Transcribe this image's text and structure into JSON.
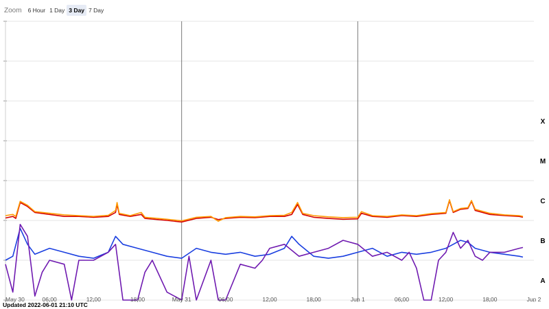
{
  "zoom": {
    "label": "Zoom",
    "buttons": [
      "6 Hour",
      "1 Day",
      "3 Day",
      "7 Day"
    ],
    "active": "3 Day"
  },
  "updated_text": "Updated 2022-06-01 21:10 UTC",
  "colors": {
    "flux_long": "#d40000",
    "flux_long_b": "#ff9900",
    "flux_short": "#1a3fe0",
    "flux_short_b": "#6f1ab0",
    "grid": "#e4e4e4",
    "day_line": "#777777"
  },
  "chart_data": {
    "type": "line",
    "title": "",
    "xlabel": "",
    "ylabel": "",
    "x_ticks": [
      "May 30",
      "06:00",
      "12:00",
      "18:00",
      "May 31",
      "06:00",
      "12:00",
      "18:00",
      "Jun 1",
      "06:00",
      "12:00",
      "18:00",
      "Jun 2"
    ],
    "x_range_hours": [
      0,
      72
    ],
    "y_scale": "log",
    "ylim_decades": [
      -9,
      -2
    ],
    "class_labels": [
      {
        "label": "X",
        "decade": -4
      },
      {
        "label": "M",
        "decade": -5
      },
      {
        "label": "C",
        "decade": -6
      },
      {
        "label": "B",
        "decade": -7
      },
      {
        "label": "A",
        "decade": -8
      }
    ],
    "day_boundaries_hours": [
      24,
      48
    ],
    "grid": true,
    "series": [
      {
        "color_key": "flux_long",
        "points": [
          [
            0,
            -6.94
          ],
          [
            1,
            -6.9
          ],
          [
            1.4,
            -6.95
          ],
          [
            2,
            -6.55
          ],
          [
            3,
            -6.65
          ],
          [
            4,
            -6.8
          ],
          [
            6,
            -6.85
          ],
          [
            8,
            -6.9
          ],
          [
            10,
            -6.9
          ],
          [
            12,
            -6.92
          ],
          [
            14,
            -6.9
          ],
          [
            15,
            -6.8
          ],
          [
            15.2,
            -6.6
          ],
          [
            15.5,
            -6.85
          ],
          [
            17,
            -6.9
          ],
          [
            18.5,
            -6.85
          ],
          [
            19,
            -6.95
          ],
          [
            22,
            -7.0
          ],
          [
            24,
            -7.04
          ],
          [
            26,
            -6.95
          ],
          [
            28,
            -6.92
          ],
          [
            29,
            -6.98
          ],
          [
            30,
            -6.95
          ],
          [
            32,
            -6.92
          ],
          [
            34,
            -6.93
          ],
          [
            36,
            -6.9
          ],
          [
            38,
            -6.9
          ],
          [
            39,
            -6.85
          ],
          [
            39.8,
            -6.6
          ],
          [
            40.5,
            -6.85
          ],
          [
            42,
            -6.92
          ],
          [
            44,
            -6.95
          ],
          [
            46,
            -6.97
          ],
          [
            48,
            -6.96
          ],
          [
            48.5,
            -6.82
          ],
          [
            50,
            -6.9
          ],
          [
            52,
            -6.92
          ],
          [
            54,
            -6.88
          ],
          [
            56,
            -6.9
          ],
          [
            58,
            -6.85
          ],
          [
            60,
            -6.82
          ],
          [
            60.5,
            -6.5
          ],
          [
            61,
            -6.8
          ],
          [
            62,
            -6.72
          ],
          [
            63,
            -6.7
          ],
          [
            63.5,
            -6.52
          ],
          [
            64,
            -6.75
          ],
          [
            66,
            -6.85
          ],
          [
            68,
            -6.88
          ],
          [
            70,
            -6.9
          ],
          [
            70.5,
            -6.92
          ]
        ]
      },
      {
        "color_key": "flux_long_b",
        "points": [
          [
            0,
            -6.88
          ],
          [
            1,
            -6.85
          ],
          [
            1.4,
            -6.9
          ],
          [
            2,
            -6.52
          ],
          [
            3,
            -6.62
          ],
          [
            4,
            -6.78
          ],
          [
            6,
            -6.82
          ],
          [
            8,
            -6.86
          ],
          [
            10,
            -6.88
          ],
          [
            12,
            -6.9
          ],
          [
            14,
            -6.87
          ],
          [
            15,
            -6.75
          ],
          [
            15.2,
            -6.55
          ],
          [
            15.5,
            -6.82
          ],
          [
            17,
            -6.88
          ],
          [
            18.5,
            -6.8
          ],
          [
            19,
            -6.92
          ],
          [
            22,
            -6.97
          ],
          [
            24,
            -7.01
          ],
          [
            26,
            -6.92
          ],
          [
            28,
            -6.9
          ],
          [
            29,
            -7.02
          ],
          [
            30,
            -6.93
          ],
          [
            32,
            -6.9
          ],
          [
            34,
            -6.91
          ],
          [
            36,
            -6.88
          ],
          [
            38,
            -6.87
          ],
          [
            39,
            -6.8
          ],
          [
            39.8,
            -6.55
          ],
          [
            40.5,
            -6.82
          ],
          [
            42,
            -6.88
          ],
          [
            44,
            -6.91
          ],
          [
            46,
            -6.93
          ],
          [
            48,
            -6.92
          ],
          [
            48.5,
            -6.78
          ],
          [
            50,
            -6.88
          ],
          [
            52,
            -6.9
          ],
          [
            54,
            -6.86
          ],
          [
            56,
            -6.88
          ],
          [
            58,
            -6.83
          ],
          [
            60,
            -6.8
          ],
          [
            60.5,
            -6.48
          ],
          [
            61,
            -6.78
          ],
          [
            62,
            -6.7
          ],
          [
            63,
            -6.68
          ],
          [
            63.5,
            -6.5
          ],
          [
            64,
            -6.72
          ],
          [
            66,
            -6.82
          ],
          [
            68,
            -6.86
          ],
          [
            70,
            -6.88
          ],
          [
            70.5,
            -6.9
          ]
        ]
      },
      {
        "color_key": "flux_short",
        "points": [
          [
            0,
            -8.0
          ],
          [
            1,
            -7.9
          ],
          [
            2,
            -7.2
          ],
          [
            3,
            -7.6
          ],
          [
            4,
            -7.85
          ],
          [
            6,
            -7.7
          ],
          [
            8,
            -7.8
          ],
          [
            10,
            -7.9
          ],
          [
            12,
            -7.95
          ],
          [
            14,
            -7.8
          ],
          [
            15,
            -7.4
          ],
          [
            16,
            -7.6
          ],
          [
            18,
            -7.7
          ],
          [
            20,
            -7.8
          ],
          [
            22,
            -7.9
          ],
          [
            24,
            -7.95
          ],
          [
            26,
            -7.7
          ],
          [
            28,
            -7.8
          ],
          [
            30,
            -7.85
          ],
          [
            32,
            -7.8
          ],
          [
            34,
            -7.9
          ],
          [
            36,
            -7.85
          ],
          [
            38,
            -7.7
          ],
          [
            39,
            -7.4
          ],
          [
            40,
            -7.6
          ],
          [
            42,
            -7.9
          ],
          [
            44,
            -7.95
          ],
          [
            46,
            -7.9
          ],
          [
            48,
            -7.8
          ],
          [
            50,
            -7.7
          ],
          [
            52,
            -7.9
          ],
          [
            54,
            -7.8
          ],
          [
            56,
            -7.85
          ],
          [
            58,
            -7.8
          ],
          [
            60,
            -7.7
          ],
          [
            61,
            -7.6
          ],
          [
            62,
            -7.5
          ],
          [
            63,
            -7.55
          ],
          [
            64,
            -7.7
          ],
          [
            66,
            -7.8
          ],
          [
            68,
            -7.85
          ],
          [
            70,
            -7.9
          ],
          [
            70.5,
            -7.92
          ]
        ]
      },
      {
        "color_key": "flux_short_b",
        "points": [
          [
            0,
            -8.1
          ],
          [
            1,
            -8.8
          ],
          [
            2,
            -7.1
          ],
          [
            3,
            -7.4
          ],
          [
            4,
            -8.9
          ],
          [
            5,
            -8.3
          ],
          [
            6,
            -8.0
          ],
          [
            8,
            -8.1
          ],
          [
            9,
            -9.0
          ],
          [
            10,
            -8.0
          ],
          [
            12,
            -8.0
          ],
          [
            14,
            -7.8
          ],
          [
            15,
            -7.6
          ],
          [
            16,
            -9.0
          ],
          [
            18,
            -9.0
          ],
          [
            19,
            -8.3
          ],
          [
            20,
            -8.0
          ],
          [
            22,
            -8.8
          ],
          [
            24,
            -9.0
          ],
          [
            25,
            -7.9
          ],
          [
            26,
            -9.0
          ],
          [
            28,
            -8.0
          ],
          [
            29,
            -9.0
          ],
          [
            30,
            -9.0
          ],
          [
            32,
            -8.1
          ],
          [
            34,
            -8.2
          ],
          [
            35,
            -8.0
          ],
          [
            36,
            -7.7
          ],
          [
            38,
            -7.6
          ],
          [
            40,
            -7.9
          ],
          [
            42,
            -7.8
          ],
          [
            44,
            -7.7
          ],
          [
            46,
            -7.5
          ],
          [
            48,
            -7.6
          ],
          [
            50,
            -7.9
          ],
          [
            52,
            -7.8
          ],
          [
            54,
            -8.0
          ],
          [
            55,
            -7.8
          ],
          [
            56,
            -8.2
          ],
          [
            57,
            -9.0
          ],
          [
            58,
            -9.0
          ],
          [
            59,
            -8.0
          ],
          [
            60,
            -7.8
          ],
          [
            61,
            -7.3
          ],
          [
            62,
            -7.7
          ],
          [
            63,
            -7.5
          ],
          [
            64,
            -7.9
          ],
          [
            65,
            -8.0
          ],
          [
            66,
            -7.8
          ],
          [
            68,
            -7.8
          ],
          [
            70,
            -7.7
          ],
          [
            70.5,
            -7.68
          ]
        ]
      }
    ]
  }
}
